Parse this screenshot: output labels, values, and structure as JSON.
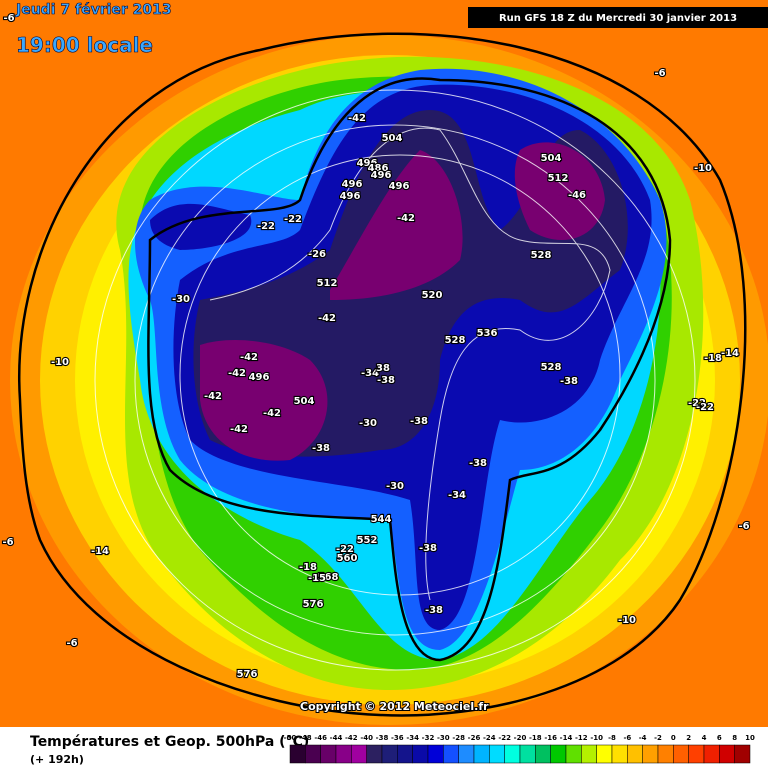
{
  "header": {
    "date": "Jeudi 7 février 2013",
    "time": "19:00 locale",
    "run": "Run GFS 18 Z du Mercredi 30 janvier 2013"
  },
  "footer": {
    "title": "Températures et Geop. 500hPa (°C)",
    "lead": "(+ 192h)",
    "copyright": "Copyright © 2012 Meteociel.fr"
  },
  "colorbar": {
    "ticks": [
      -50,
      -48,
      -46,
      -44,
      -42,
      -40,
      -38,
      -36,
      -34,
      -32,
      -30,
      -28,
      -26,
      -24,
      -22,
      -20,
      -18,
      -16,
      -14,
      -12,
      -10,
      -8,
      -6,
      -4,
      -2,
      0,
      2,
      4,
      6,
      8,
      10
    ],
    "colors": [
      "#2a0030",
      "#4a0050",
      "#680068",
      "#880088",
      "#a000a0",
      "#2c2060",
      "#1e1e78",
      "#14148c",
      "#0a0aa8",
      "#0000d8",
      "#1450ff",
      "#1e8cff",
      "#00b4ff",
      "#00dcff",
      "#00ffe0",
      "#00e0a0",
      "#00c060",
      "#00c800",
      "#60e000",
      "#b4f000",
      "#ffff00",
      "#ffe000",
      "#ffc000",
      "#ffa000",
      "#ff8000",
      "#ff6000",
      "#ff4000",
      "#f02000",
      "#d00000",
      "#a00000"
    ]
  },
  "map": {
    "labels": [
      "-42",
      "504",
      "496",
      "486",
      "496",
      "496",
      "496",
      "496",
      "-42",
      "504",
      "512",
      "-46",
      "528",
      "520",
      "-42",
      "528",
      "536",
      "528",
      "-38",
      "-42",
      "-42",
      "496",
      "-42",
      "504",
      "-42",
      "-42",
      "-38",
      "-34",
      "38",
      "-38",
      "-30",
      "-38",
      "-38",
      "-34",
      "-30",
      "544",
      "552",
      "-22",
      "560",
      "-38",
      "-18",
      "568",
      "-15",
      "576",
      "-38",
      "-30",
      "512",
      "-26",
      "-22",
      "-22",
      "-10",
      "-6",
      "-14",
      "-6",
      "576",
      "-10",
      "-6",
      "-10",
      "-18",
      "-14",
      "-22",
      "-22",
      "-6",
      "-6"
    ]
  }
}
